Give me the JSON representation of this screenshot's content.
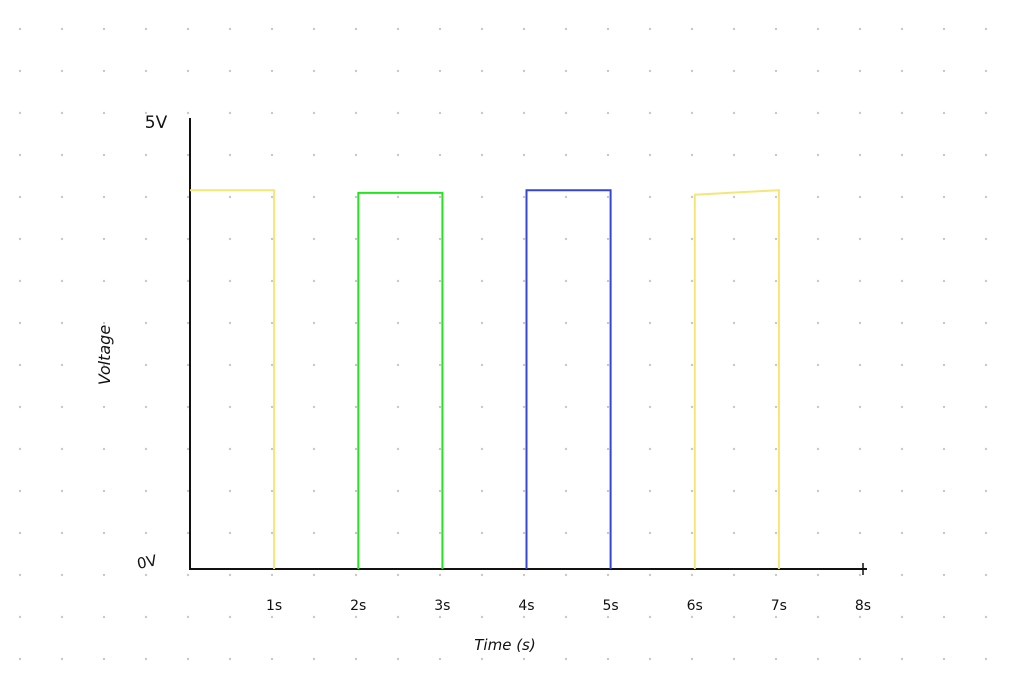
{
  "chart_data": {
    "type": "line",
    "title": "",
    "xlabel": "Time (s)",
    "ylabel": "Voltage",
    "xlim": [
      0,
      8
    ],
    "ylim": [
      0,
      5
    ],
    "grid": "dotted",
    "x_tick_labels": [
      "1s",
      "2s",
      "3s",
      "4s",
      "5s",
      "6s",
      "7s",
      "8s"
    ],
    "y_tick_labels": [
      "0V",
      "5V"
    ],
    "series": [
      {
        "color": "#f5e67a",
        "points": [
          [
            0,
            4.2
          ],
          [
            1,
            4.2
          ],
          [
            1,
            0
          ]
        ]
      },
      {
        "color": "#22e61e",
        "points": [
          [
            2,
            0
          ],
          [
            2,
            4.17
          ],
          [
            3,
            4.17
          ],
          [
            3,
            0
          ]
        ]
      },
      {
        "color": "#3346d6",
        "points": [
          [
            4,
            0
          ],
          [
            4,
            4.2
          ],
          [
            5,
            4.2
          ],
          [
            5,
            0
          ]
        ]
      },
      {
        "color": "#f5e67a",
        "points": [
          [
            6,
            0
          ],
          [
            6,
            4.15
          ],
          [
            7,
            4.2
          ],
          [
            7,
            0
          ]
        ]
      }
    ]
  }
}
